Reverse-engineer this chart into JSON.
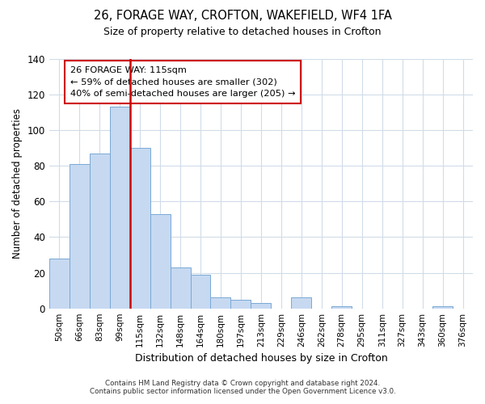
{
  "title1": "26, FORAGE WAY, CROFTON, WAKEFIELD, WF4 1FA",
  "title2": "Size of property relative to detached houses in Crofton",
  "xlabel": "Distribution of detached houses by size in Crofton",
  "ylabel": "Number of detached properties",
  "bar_labels": [
    "50sqm",
    "66sqm",
    "83sqm",
    "99sqm",
    "115sqm",
    "132sqm",
    "148sqm",
    "164sqm",
    "180sqm",
    "197sqm",
    "213sqm",
    "229sqm",
    "246sqm",
    "262sqm",
    "278sqm",
    "295sqm",
    "311sqm",
    "327sqm",
    "343sqm",
    "360sqm",
    "376sqm"
  ],
  "bar_values": [
    28,
    81,
    87,
    113,
    90,
    53,
    23,
    19,
    6,
    5,
    3,
    0,
    6,
    0,
    1,
    0,
    0,
    0,
    0,
    1,
    0
  ],
  "bar_color": "#c6d9f1",
  "bar_edge_color": "#7aa8d4",
  "vline_x": 3.5,
  "vline_color": "#cc0000",
  "annotation_title": "26 FORAGE WAY: 115sqm",
  "annotation_line1": "← 59% of detached houses are smaller (302)",
  "annotation_line2": "40% of semi-detached houses are larger (205) →",
  "box_edge_color": "#cc0000",
  "ylim": [
    0,
    140
  ],
  "yticks": [
    0,
    20,
    40,
    60,
    80,
    100,
    120,
    140
  ],
  "footer1": "Contains HM Land Registry data © Crown copyright and database right 2024.",
  "footer2": "Contains public sector information licensed under the Open Government Licence v3.0.",
  "bg_color": "#ffffff",
  "grid_color": "#d0dce8"
}
